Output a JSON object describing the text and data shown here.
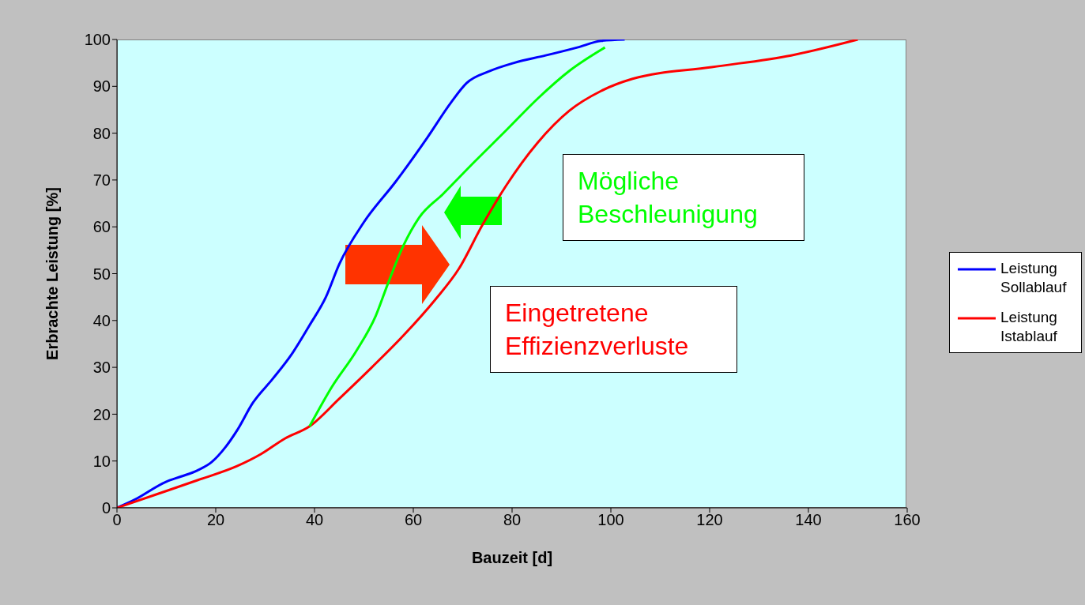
{
  "chart_data": {
    "type": "line",
    "xlabel": "Bauzeit [d]",
    "ylabel": "Erbrachte Leistung [%]",
    "xlim": [
      0,
      160
    ],
    "xticks": [
      0,
      20,
      40,
      60,
      80,
      100,
      120,
      140,
      160
    ],
    "ylim": [
      0,
      100
    ],
    "yticks": [
      0,
      10,
      20,
      30,
      40,
      50,
      60,
      70,
      80,
      90,
      100
    ],
    "grid": false,
    "legend": "right",
    "marker": "none",
    "line_style": "solid",
    "series": [
      {
        "name": "Leistung Sollablauf",
        "color": "#0000ff",
        "x": [
          0,
          3.5,
          10,
          13,
          16.3,
          19.2,
          22,
          24.3,
          27.5,
          31.5,
          35.5,
          39,
          42.3,
          45,
          50,
          56.4,
          62.8,
          67.6,
          70.8,
          75.6,
          80.4,
          86.8,
          93.2,
          98,
          102.8
        ],
        "values": [
          0,
          1.7,
          5.6,
          6.7,
          8,
          9.8,
          13,
          16.5,
          22.4,
          27.5,
          33,
          39,
          45,
          52,
          61,
          69.6,
          79,
          86.5,
          90.7,
          93.3,
          95,
          96.6,
          98.3,
          99.7,
          100
        ]
      },
      {
        "name": "Leistung Istablauf",
        "color": "#ff0000",
        "x": [
          0,
          8.3,
          16.3,
          24.3,
          29.2,
          34,
          39,
          45,
          51.6,
          58,
          64.4,
          69.2,
          74,
          78.8,
          85.2,
          91.6,
          98,
          104.4,
          120.4,
          136.5,
          150
        ],
        "values": [
          0,
          3,
          5.9,
          8.9,
          11.5,
          14.8,
          17.4,
          23.3,
          30,
          36.8,
          44.4,
          51,
          60.4,
          68.8,
          78,
          84.8,
          89,
          91.6,
          94.1,
          96.6,
          100
        ]
      },
      {
        "color": "#00ff00",
        "x": [
          39,
          43.5,
          48.4,
          52.4,
          54.8,
          58,
          61.2,
          66,
          72.4,
          78.8,
          85.2,
          91.6,
          98.8
        ],
        "values": [
          17.4,
          25.8,
          33.4,
          41,
          47.7,
          56,
          62,
          67,
          73.9,
          80.6,
          87.4,
          93.3,
          98.3
        ]
      }
    ],
    "annotations": [
      "Mögliche Beschleunigung",
      "Eingetretene Effizienzverluste"
    ]
  }
}
